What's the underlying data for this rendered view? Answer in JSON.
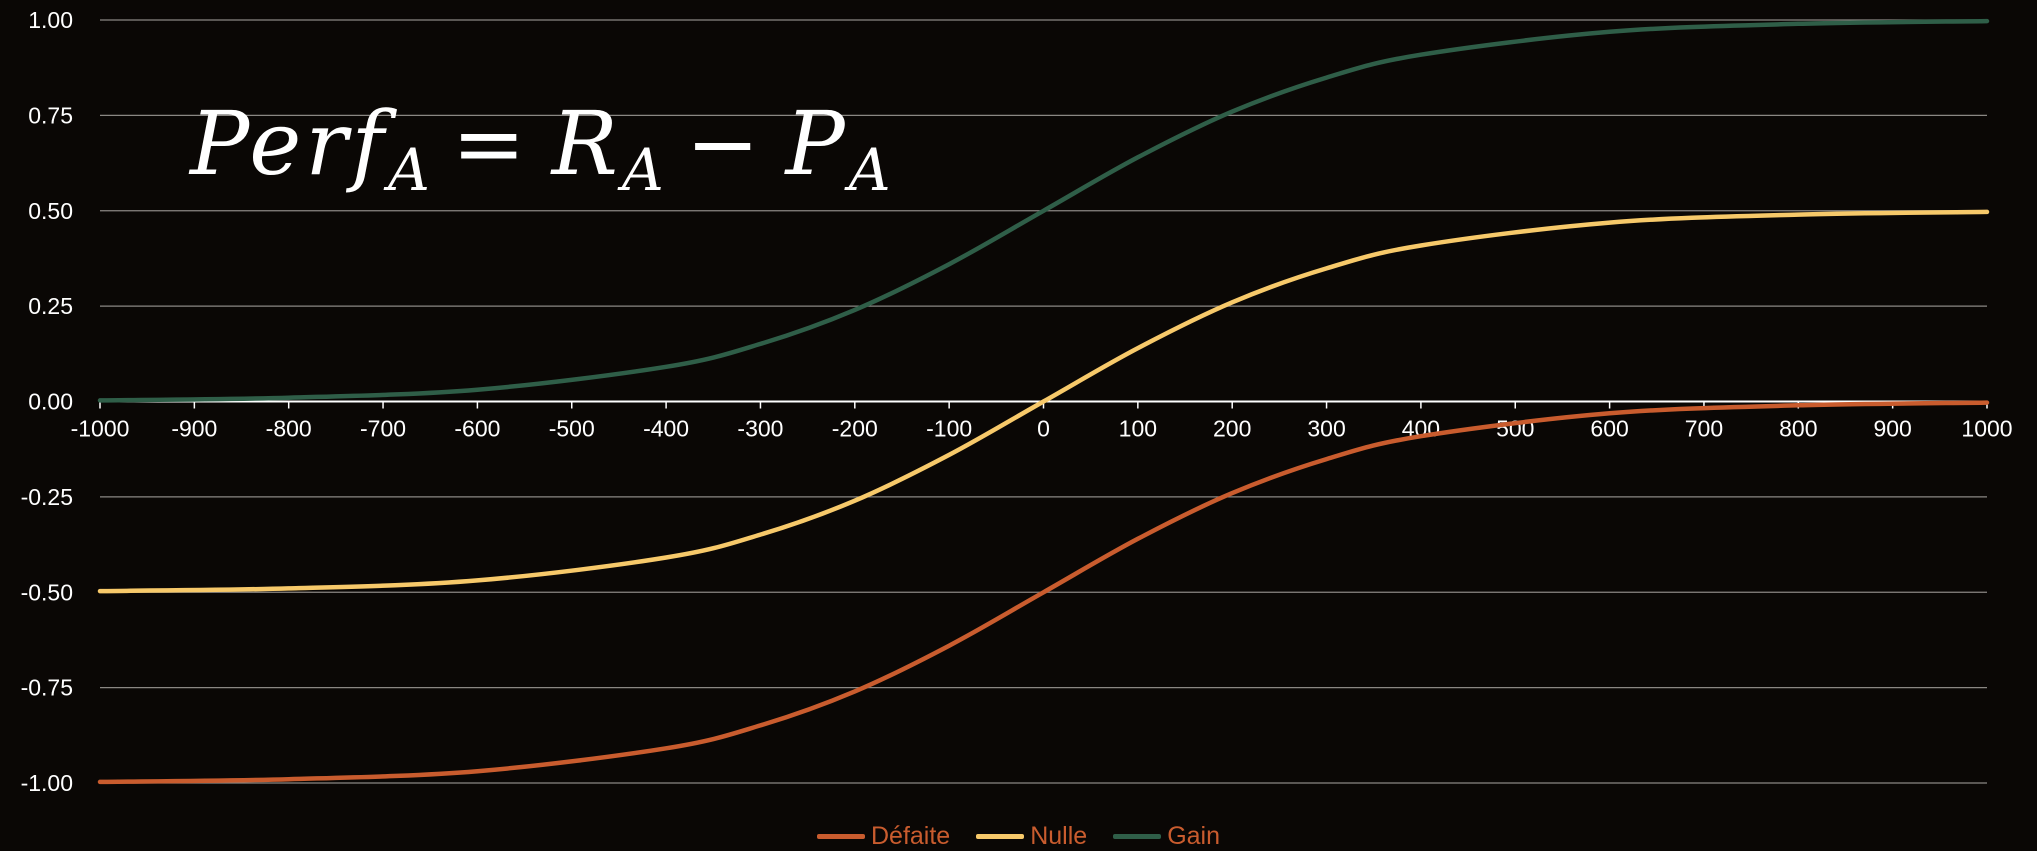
{
  "formula": {
    "base": "Perf",
    "sub1": "A",
    "eq": "=",
    "r": "R",
    "sub2": "A",
    "minus": "−",
    "p": "P",
    "sub3": "A"
  },
  "chart_data": {
    "type": "line",
    "title": "",
    "xlabel": "",
    "ylabel": "",
    "xlim": [
      -1000,
      1000
    ],
    "ylim": [
      -1.0,
      1.0
    ],
    "x_ticks": [
      "-1000",
      "-900",
      "-800",
      "-700",
      "-600",
      "-500",
      "-400",
      "-300",
      "-200",
      "-100",
      "0",
      "100",
      "200",
      "300",
      "400",
      "500",
      "600",
      "700",
      "800",
      "900",
      "1000"
    ],
    "y_ticks": [
      "1.00",
      "0.75",
      "0.50",
      "0.25",
      "0.00",
      "-0.25",
      "-0.50",
      "-0.75",
      "-1.00"
    ],
    "grid": true,
    "legend_position": "bottom",
    "series": [
      {
        "name": "Défaite",
        "color": "#c95c2e",
        "x": [
          -1000,
          -800,
          -600,
          -400,
          -300,
          -200,
          -100,
          0,
          100,
          200,
          300,
          400,
          600,
          800,
          1000
        ],
        "y": [
          -0.997,
          -0.99,
          -0.969,
          -0.909,
          -0.849,
          -0.76,
          -0.64,
          -0.5,
          -0.36,
          -0.24,
          -0.151,
          -0.091,
          -0.031,
          -0.01,
          -0.003
        ]
      },
      {
        "name": "Nulle",
        "color": "#f7c96a",
        "x": [
          -1000,
          -800,
          -600,
          -400,
          -300,
          -200,
          -100,
          0,
          100,
          200,
          300,
          400,
          600,
          800,
          1000
        ],
        "y": [
          -0.497,
          -0.49,
          -0.469,
          -0.409,
          -0.349,
          -0.26,
          -0.14,
          0.0,
          0.14,
          0.26,
          0.349,
          0.409,
          0.469,
          0.49,
          0.497
        ]
      },
      {
        "name": "Gain",
        "color": "#2f5e48",
        "x": [
          -1000,
          -800,
          -600,
          -400,
          -300,
          -200,
          -100,
          0,
          100,
          200,
          300,
          400,
          600,
          800,
          1000
        ],
        "y": [
          0.003,
          0.01,
          0.031,
          0.091,
          0.151,
          0.24,
          0.36,
          0.5,
          0.64,
          0.76,
          0.849,
          0.909,
          0.969,
          0.99,
          0.997
        ]
      }
    ]
  }
}
